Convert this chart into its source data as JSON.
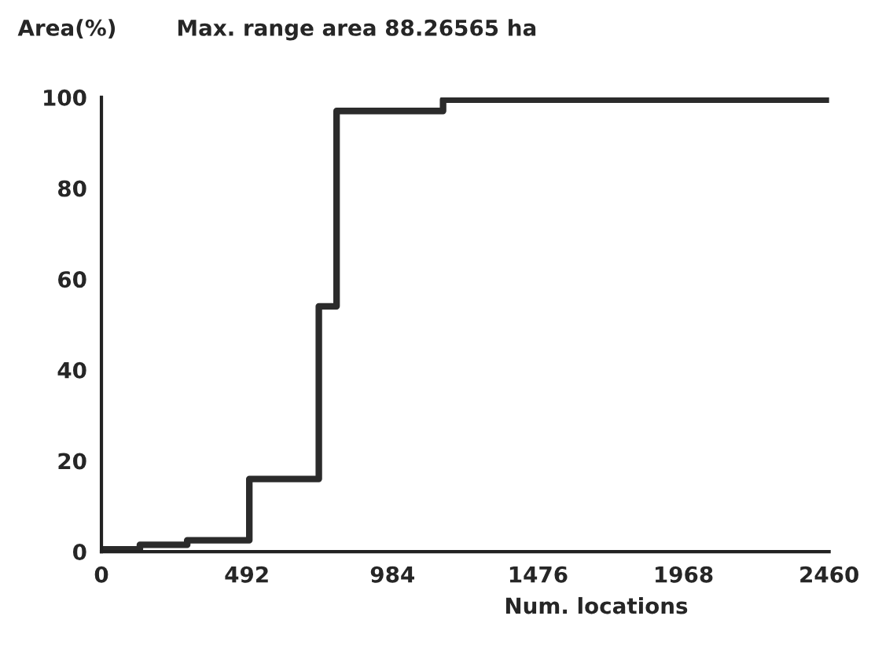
{
  "chart_data": {
    "type": "step",
    "title": "Max. range area 88.26565 ha",
    "ylabel": "Area(%)",
    "xlabel": "Num. locations",
    "x": [
      0,
      130,
      290,
      500,
      735,
      795,
      1155,
      2460
    ],
    "series": [
      {
        "color": "#2b2b2b",
        "values": [
          0.5,
          1.5,
          2.5,
          16,
          54,
          97,
          99.5,
          99.5
        ]
      }
    ],
    "xlim": [
      0,
      2460
    ],
    "ylim": [
      0,
      100
    ],
    "xticks": [
      0,
      492,
      984,
      1476,
      1968,
      2460
    ],
    "yticks": [
      0,
      20,
      40,
      60,
      80,
      100
    ],
    "grid": false,
    "marker": "none",
    "line_style": "solid"
  }
}
